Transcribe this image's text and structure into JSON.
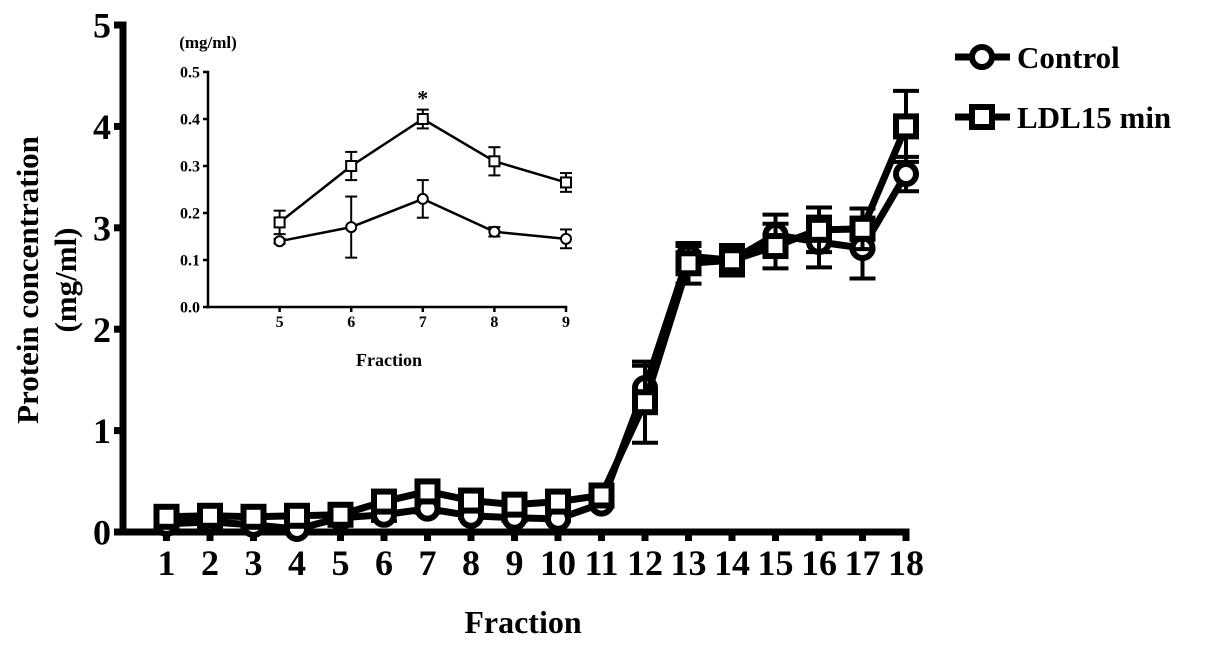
{
  "chart_data": [
    {
      "type": "line",
      "title": "",
      "xlabel": "Fraction",
      "ylabel": "Protein concentration (mg/ml)",
      "ylabel_lines": [
        "Protein concentration",
        "(mg/ml)"
      ],
      "x": [
        1,
        2,
        3,
        4,
        5,
        6,
        7,
        8,
        9,
        10,
        11,
        12,
        13,
        14,
        15,
        16,
        17,
        18
      ],
      "x_tick_labels": [
        "1",
        "2",
        "3",
        "4",
        "5",
        "6",
        "7",
        "8",
        "9",
        "10",
        "11",
        "12",
        "13",
        "14",
        "15",
        "16",
        "17",
        "18"
      ],
      "xlim": [
        0,
        18
      ],
      "ylim": [
        0,
        5
      ],
      "y_ticks": [
        0,
        1,
        2,
        3,
        4,
        5
      ],
      "y_tick_labels": [
        "0",
        "1",
        "2",
        "3",
        "4",
        "5"
      ],
      "grid": false,
      "legend_position": "top-right",
      "series": [
        {
          "name": "Control",
          "marker": "circle",
          "color": "#000000",
          "values": [
            0.08,
            0.1,
            0.07,
            0.03,
            0.14,
            0.17,
            0.23,
            0.16,
            0.14,
            0.13,
            0.28,
            1.42,
            2.72,
            2.68,
            2.93,
            2.86,
            2.8,
            3.53
          ],
          "errors": [
            0.02,
            0.02,
            0.02,
            0.02,
            0.02,
            0.06,
            0.04,
            0.02,
            0.03,
            0.02,
            0.03,
            0.22,
            0.1,
            0.12,
            0.2,
            0.25,
            0.3,
            0.17
          ]
        },
        {
          "name": "LDL15 min",
          "marker": "square",
          "color": "#000000",
          "values": [
            0.15,
            0.16,
            0.15,
            0.16,
            0.17,
            0.3,
            0.4,
            0.31,
            0.27,
            0.3,
            0.36,
            1.28,
            2.65,
            2.68,
            2.82,
            2.98,
            2.99,
            4.0
          ],
          "errors": [
            0.02,
            0.02,
            0.02,
            0.02,
            0.02,
            0.03,
            0.02,
            0.03,
            0.02,
            0.02,
            0.03,
            0.4,
            0.2,
            0.15,
            0.22,
            0.22,
            0.2,
            0.35
          ]
        }
      ]
    },
    {
      "type": "line",
      "title": "",
      "xlabel": "Fraction",
      "ylabel": "(mg/ml)",
      "x": [
        5,
        6,
        7,
        8,
        9
      ],
      "x_tick_labels": [
        "5",
        "6",
        "7",
        "8",
        "9"
      ],
      "xlim": [
        4,
        9
      ],
      "ylim": [
        0,
        0.5
      ],
      "y_ticks": [
        0,
        0.1,
        0.2,
        0.3,
        0.4,
        0.5
      ],
      "y_tick_labels": [
        "0.0",
        "0.1",
        "0.2",
        "0.3",
        "0.4",
        "0.5"
      ],
      "grid": false,
      "annotations": [
        {
          "text": "*",
          "x": 7
        }
      ],
      "series": [
        {
          "marker": "circle",
          "values": [
            0.14,
            0.17,
            0.23,
            0.16,
            0.145
          ],
          "errors": [
            0.005,
            0.065,
            0.04,
            0.01,
            0.02
          ]
        },
        {
          "marker": "square",
          "values": [
            0.18,
            0.3,
            0.4,
            0.31,
            0.265
          ],
          "errors": [
            0.025,
            0.03,
            0.02,
            0.03,
            0.02
          ]
        }
      ]
    }
  ]
}
